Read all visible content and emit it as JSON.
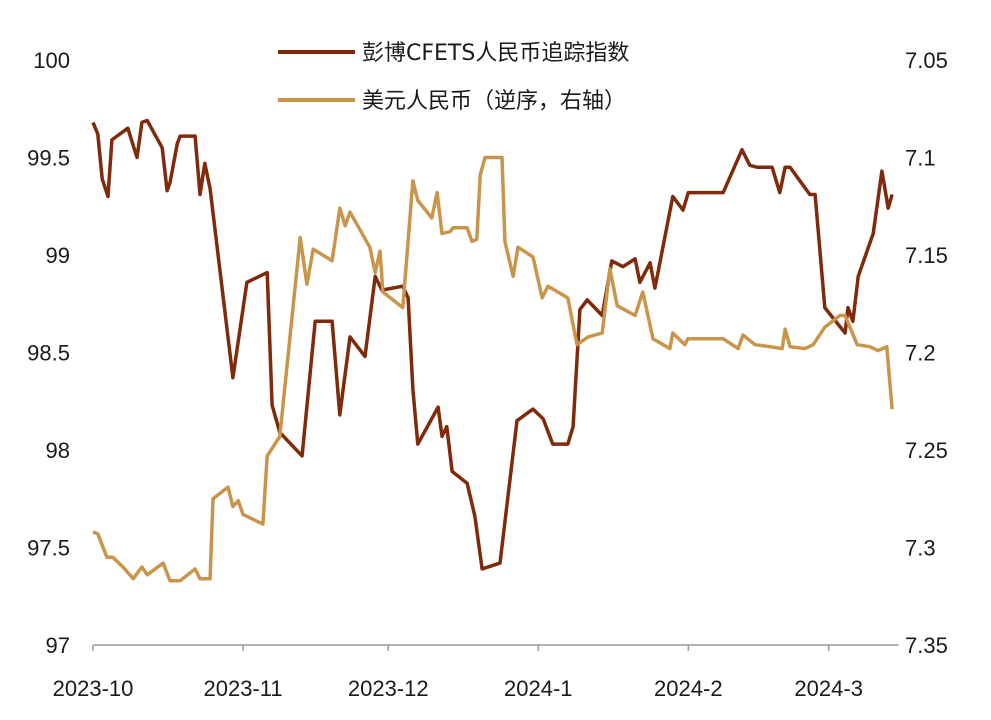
{
  "chart_data": {
    "type": "line",
    "title": "",
    "x_unit": "days since 2023-10-01",
    "x_tick_labels": [
      {
        "label": "2023-10",
        "day": 0
      },
      {
        "label": "2023-11",
        "day": 31
      },
      {
        "label": "2023-12",
        "day": 61
      },
      {
        "label": "2024-1",
        "day": 92
      },
      {
        "label": "2024-2",
        "day": 123
      },
      {
        "label": "2024-3",
        "day": 152
      }
    ],
    "xlim": [
      0,
      166
    ],
    "y_left": {
      "ylim": [
        97,
        100
      ],
      "ticks": [
        "97",
        "97.5",
        "98",
        "98.5",
        "99",
        "99.5",
        "100"
      ],
      "tick_values": [
        97,
        97.5,
        98,
        98.5,
        99,
        99.5,
        100
      ]
    },
    "y_right": {
      "ylim": [
        7.05,
        7.35
      ],
      "inverted": true,
      "ticks": [
        "7.05",
        "7.1",
        "7.15",
        "7.2",
        "7.25",
        "7.3",
        "7.35"
      ],
      "tick_values": [
        7.05,
        7.1,
        7.15,
        7.2,
        7.25,
        7.3,
        7.35
      ]
    },
    "grid": false,
    "legend_position": "top-center",
    "series": [
      {
        "name": "彭博CFETS人民币追踪指数",
        "axis": "left",
        "color": "#7f2a0a",
        "x": [
          0,
          1,
          1.9,
          3.1,
          3.9,
          7.2,
          9.1,
          10.1,
          11.2,
          14.3,
          15.3,
          15.9,
          17.4,
          18,
          21.1,
          22.1,
          23.1,
          24.2,
          28.9,
          31.8,
          36,
          37,
          38.6,
          43.2,
          45.9,
          49.4,
          51,
          53.1,
          56.2,
          58.3,
          59.7,
          64,
          65.1,
          66.1,
          67.1,
          71.3,
          72.1,
          73.1,
          74.2,
          77.3,
          78.9,
          80.4,
          84.1,
          87.6,
          90.9,
          93,
          95,
          98.1,
          99.2,
          100.6,
          102.1,
          105.2,
          107.2,
          109.5,
          112,
          113,
          115.1,
          116.1,
          119.8,
          121.9,
          123,
          130.2,
          134.1,
          135.7,
          137.2,
          140.3,
          141.9,
          143,
          144,
          148.1,
          149.2,
          151.2,
          155.4,
          156,
          157,
          158.1,
          161.2,
          163,
          164.3,
          165.1
        ],
        "values": [
          99.68,
          99.62,
          99.39,
          99.3,
          99.59,
          99.65,
          99.5,
          99.68,
          99.69,
          99.55,
          99.33,
          99.37,
          99.57,
          99.61,
          99.61,
          99.31,
          99.47,
          99.34,
          98.37,
          98.86,
          98.91,
          98.23,
          98.09,
          97.97,
          98.66,
          98.66,
          98.18,
          98.58,
          98.48,
          98.89,
          98.82,
          98.84,
          98.78,
          98.31,
          98.03,
          98.22,
          98.07,
          98.12,
          97.89,
          97.83,
          97.66,
          97.39,
          97.42,
          98.15,
          98.21,
          98.16,
          98.03,
          98.03,
          98.12,
          98.72,
          98.77,
          98.69,
          98.97,
          98.94,
          98.98,
          98.86,
          98.96,
          98.83,
          99.3,
          99.23,
          99.32,
          99.32,
          99.54,
          99.46,
          99.45,
          99.45,
          99.32,
          99.45,
          99.45,
          99.31,
          99.31,
          98.73,
          98.6,
          98.73,
          98.66,
          98.89,
          99.11,
          99.43,
          99.24,
          99.31
        ]
      },
      {
        "name": "美元人民币（逆序，右轴）",
        "axis": "right",
        "color": "#c8954a",
        "x": [
          0,
          1,
          2.9,
          4.1,
          6.2,
          8.3,
          10.1,
          11.2,
          14.5,
          15.9,
          18,
          21.1,
          22.1,
          24.2,
          24.8,
          27.9,
          28.9,
          30,
          31,
          35.1,
          36,
          38.6,
          42.8,
          44.2,
          45.5,
          49.4,
          51,
          52.1,
          53.1,
          57.2,
          58.3,
          59.3,
          59.9,
          64,
          66.1,
          67.1,
          70,
          71.1,
          72.1,
          73.8,
          74.4,
          77.3,
          78.3,
          79.3,
          80,
          81,
          84.5,
          85.1,
          86.8,
          87.8,
          90.9,
          92.8,
          94,
          98.1,
          100,
          102.3,
          105.2,
          106.8,
          108.3,
          112,
          113.6,
          115.7,
          119.2,
          119.8,
          122.3,
          122.9,
          130.2,
          133.3,
          134.3,
          136.8,
          139.9,
          142.4,
          143,
          144,
          147.1,
          148.8,
          151.2,
          154.3,
          155.4,
          157.9,
          160.5,
          162.2,
          164,
          165.1
        ],
        "values": [
          7.292,
          7.293,
          7.305,
          7.305,
          7.31,
          7.316,
          7.31,
          7.314,
          7.308,
          7.317,
          7.317,
          7.311,
          7.316,
          7.316,
          7.275,
          7.269,
          7.279,
          7.276,
          7.283,
          7.288,
          7.253,
          7.243,
          7.141,
          7.165,
          7.147,
          7.153,
          7.126,
          7.135,
          7.128,
          7.146,
          7.159,
          7.148,
          7.169,
          7.177,
          7.112,
          7.122,
          7.131,
          7.118,
          7.139,
          7.138,
          7.136,
          7.136,
          7.143,
          7.142,
          7.109,
          7.1,
          7.1,
          7.143,
          7.161,
          7.146,
          7.151,
          7.172,
          7.166,
          7.172,
          7.196,
          7.192,
          7.19,
          7.157,
          7.176,
          7.181,
          7.169,
          7.193,
          7.198,
          7.19,
          7.196,
          7.193,
          7.193,
          7.198,
          7.191,
          7.196,
          7.197,
          7.198,
          7.188,
          7.197,
          7.198,
          7.196,
          7.187,
          7.181,
          7.181,
          7.196,
          7.197,
          7.199,
          7.197,
          7.229
        ]
      }
    ]
  }
}
